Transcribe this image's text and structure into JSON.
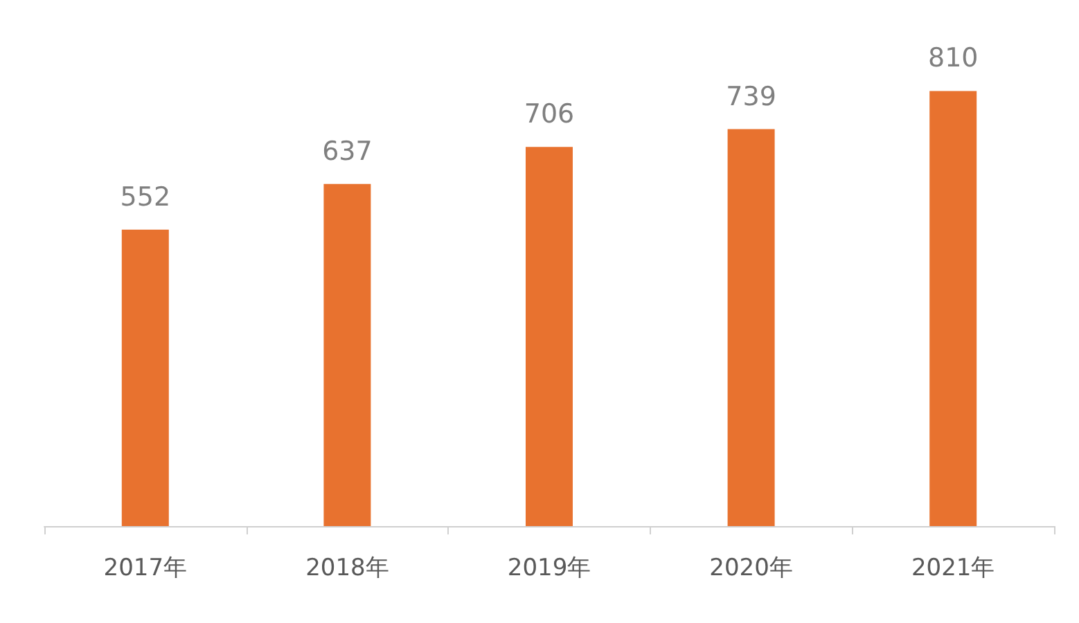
{
  "chart_data": {
    "type": "bar",
    "categories": [
      "2017年",
      "2018年",
      "2019年",
      "2020年",
      "2021年"
    ],
    "values": [
      552,
      637,
      706,
      739,
      810
    ],
    "color": "#e8722f",
    "data_labels": true
  }
}
